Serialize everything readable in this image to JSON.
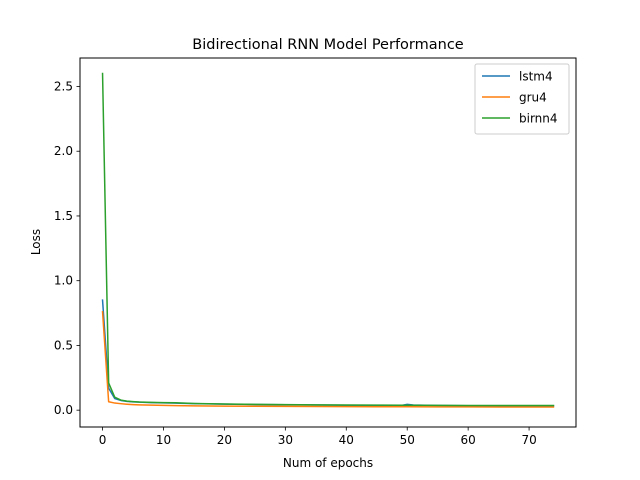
{
  "chart_data": {
    "type": "line",
    "title": "Bidirectional RNN Model Performance",
    "xlabel": "Num of epochs",
    "ylabel": "Loss",
    "xlim": [
      -3.7,
      77.7
    ],
    "ylim": [
      -0.13,
      2.72
    ],
    "xticks": [
      0,
      10,
      20,
      30,
      40,
      50,
      60,
      70
    ],
    "yticks": [
      0.0,
      0.5,
      1.0,
      1.5,
      2.0,
      2.5
    ],
    "xtick_labels": [
      "0",
      "10",
      "20",
      "30",
      "40",
      "50",
      "60",
      "70"
    ],
    "ytick_labels": [
      "0.0",
      "0.5",
      "1.0",
      "1.5",
      "2.0",
      "2.5"
    ],
    "legend_position": "top-right",
    "grid": false,
    "series": [
      {
        "name": "lstm4",
        "color": "#1f77b4",
        "x": [
          0,
          1,
          2,
          3,
          4,
          5,
          6,
          8,
          10,
          12,
          15,
          20,
          25,
          30,
          35,
          40,
          45,
          49,
          50,
          51,
          55,
          60,
          65,
          70,
          74
        ],
        "y": [
          0.85,
          0.17,
          0.09,
          0.075,
          0.068,
          0.064,
          0.062,
          0.058,
          0.056,
          0.054,
          0.051,
          0.047,
          0.044,
          0.042,
          0.04,
          0.038,
          0.037,
          0.036,
          0.045,
          0.04,
          0.036,
          0.034,
          0.033,
          0.033,
          0.033
        ]
      },
      {
        "name": "gru4",
        "color": "#ff7f0e",
        "x": [
          0,
          1,
          2,
          3,
          4,
          5,
          6,
          8,
          10,
          12,
          15,
          20,
          25,
          30,
          35,
          40,
          45,
          50,
          55,
          60,
          65,
          70,
          74
        ],
        "y": [
          0.76,
          0.065,
          0.055,
          0.05,
          0.046,
          0.043,
          0.041,
          0.039,
          0.037,
          0.035,
          0.033,
          0.031,
          0.03,
          0.029,
          0.028,
          0.027,
          0.026,
          0.026,
          0.025,
          0.025,
          0.024,
          0.024,
          0.024
        ]
      },
      {
        "name": "birnn4",
        "color": "#2ca02c",
        "x": [
          0,
          1,
          2,
          3,
          4,
          5,
          6,
          8,
          10,
          12,
          15,
          20,
          25,
          30,
          35,
          40,
          45,
          50,
          55,
          60,
          65,
          70,
          74
        ],
        "y": [
          2.6,
          0.21,
          0.1,
          0.078,
          0.07,
          0.066,
          0.063,
          0.06,
          0.058,
          0.057,
          0.052,
          0.048,
          0.045,
          0.043,
          0.041,
          0.04,
          0.039,
          0.038,
          0.037,
          0.036,
          0.036,
          0.036,
          0.036
        ]
      }
    ]
  }
}
